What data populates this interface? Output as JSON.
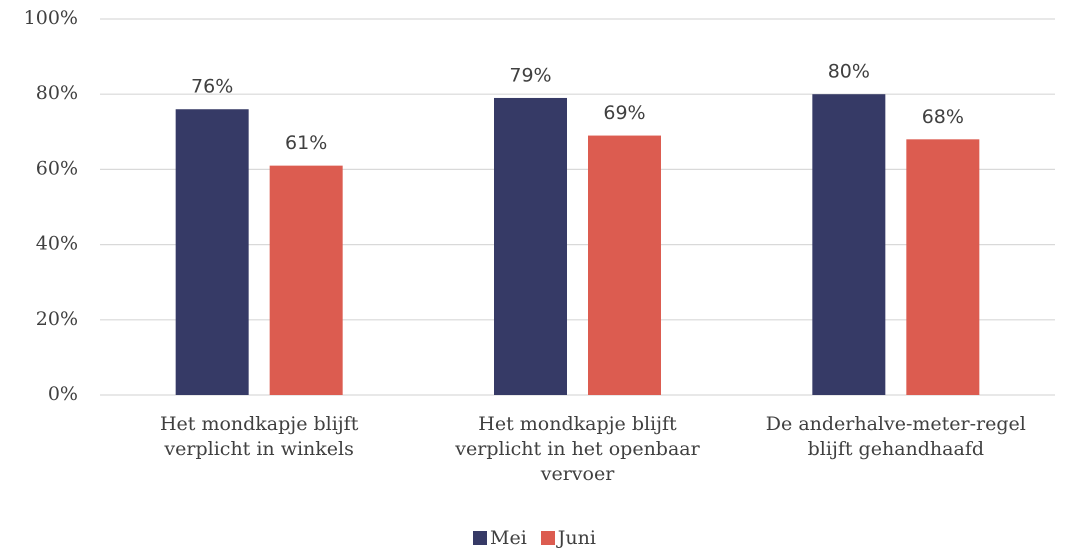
{
  "chart_data": {
    "type": "bar",
    "categories": [
      "Het mondkapje blijft verplicht in winkels",
      "Het mondkapje blijft verplicht in het openbaar vervoer",
      "De anderhalve-meter-regel blijft gehandhaafd"
    ],
    "series": [
      {
        "name": "Mei",
        "color": "#363a66",
        "values": [
          76,
          79,
          80
        ],
        "value_labels": [
          "76%",
          "79%",
          "80%"
        ]
      },
      {
        "name": "Juni",
        "color": "#dc5c50",
        "values": [
          61,
          69,
          68
        ],
        "value_labels": [
          "61%",
          "69%",
          "68%"
        ]
      }
    ],
    "ylim": [
      0,
      100
    ],
    "yticks": [
      {
        "value": 0,
        "label": "0%"
      },
      {
        "value": 20,
        "label": "20%"
      },
      {
        "value": 40,
        "label": "40%"
      },
      {
        "value": 60,
        "label": "60%"
      },
      {
        "value": 80,
        "label": "80%"
      },
      {
        "value": 100,
        "label": "100%"
      }
    ],
    "grid": true,
    "legend": "bottom"
  }
}
